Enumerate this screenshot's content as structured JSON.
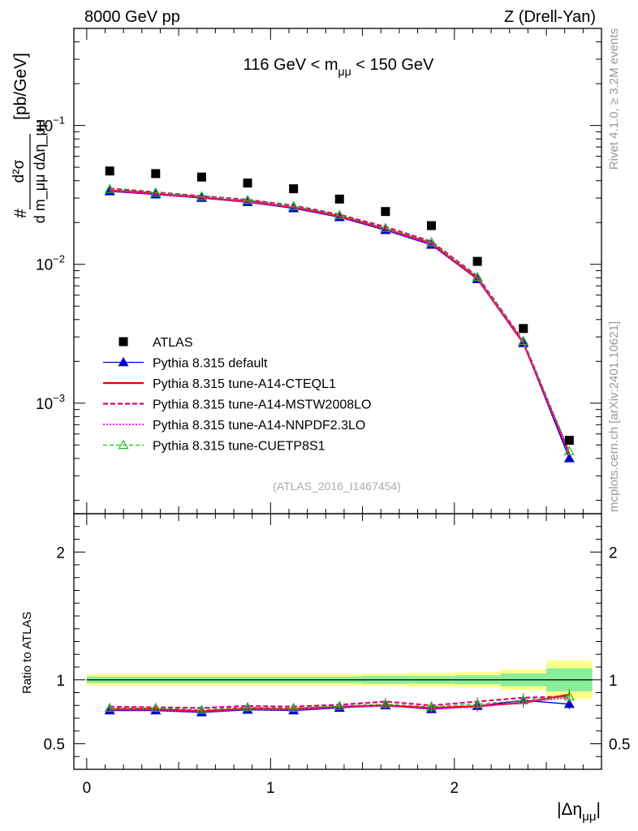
{
  "header": {
    "left": "8000 GeV pp",
    "right": "Z (Drell-Yan)"
  },
  "side_labels": {
    "rivet": "Rivet 4.1.0, ≥ 3.2M events",
    "mcplots": "mcplots.cern.ch [arXiv:2401.10621]"
  },
  "chart_data": [
    {
      "type": "scatter",
      "panel": "main",
      "title": "116 GeV < m_μμ < 150 GeV",
      "ylabel": "d²σ / (d m_μμ dΔη_μμ) [pb/GeV]",
      "ylabel_parts": {
        "hash": "#",
        "num": "d²σ",
        "den": "d m_μμ dΔη_μμ",
        "unit": "[pb/GeV]"
      },
      "yscale": "log",
      "ylim": [
        0.00016,
        0.5
      ],
      "xlim": [
        -0.07,
        2.8
      ],
      "ytick_labels": [
        {
          "v": 0.1,
          "base": "10",
          "exp": "−1"
        },
        {
          "v": 0.01,
          "base": "10",
          "exp": "−2"
        },
        {
          "v": 0.001,
          "base": "10",
          "exp": "−3"
        }
      ],
      "watermark": "(ATLAS_2016_I1467454)",
      "x": [
        0.125,
        0.375,
        0.625,
        0.875,
        1.125,
        1.375,
        1.625,
        1.875,
        2.125,
        2.375,
        2.625
      ],
      "series": [
        {
          "name": "ATLAS",
          "color": "#000000",
          "values": [
            0.047,
            0.045,
            0.0425,
            0.0385,
            0.035,
            0.0295,
            0.024,
            0.019,
            0.0105,
            0.00345,
            0.00054
          ]
        },
        {
          "name": "Pythia 8.315 default",
          "color": "#0000cc",
          "values": [
            0.0335,
            0.0318,
            0.03,
            0.028,
            0.0253,
            0.0218,
            0.0176,
            0.0138,
            0.0078,
            0.0027,
            0.0004
          ]
        },
        {
          "name": "Pythia 8.315 tune-A14-CTEQL1",
          "color": "#ee0000",
          "values": [
            0.034,
            0.0322,
            0.0302,
            0.0283,
            0.0257,
            0.0222,
            0.018,
            0.0141,
            0.0079,
            0.0027,
            0.00043
          ]
        },
        {
          "name": "Pythia 8.315 tune-A14-MSTW2008LO",
          "color": "#dd0077",
          "values": [
            0.0352,
            0.033,
            0.031,
            0.0292,
            0.0265,
            0.0228,
            0.0186,
            0.0146,
            0.0082,
            0.0028,
            0.00044
          ]
        },
        {
          "name": "Pythia 8.315 tune-A14-NNPDF2.3LO",
          "color": "#ee00ee",
          "values": [
            0.0338,
            0.032,
            0.0301,
            0.0282,
            0.0256,
            0.022,
            0.0178,
            0.014,
            0.0078,
            0.0027,
            0.00043
          ]
        },
        {
          "name": "Pythia 8.315 tune-CUETP8S1",
          "color": "#22bb22",
          "values": [
            0.0348,
            0.0328,
            0.0308,
            0.029,
            0.0262,
            0.0226,
            0.0182,
            0.0144,
            0.0081,
            0.0028,
            0.00045
          ]
        }
      ]
    },
    {
      "type": "line",
      "panel": "ratio",
      "ylabel": "Ratio to ATLAS",
      "xlabel": "|Δη_μμ|",
      "xlabel_parts": {
        "pre": "|Δη",
        "sub": "μμ",
        "post": "|"
      },
      "ylim": [
        0.3,
        2.3
      ],
      "xlim": [
        -0.07,
        2.8
      ],
      "xtick_labels": [
        "0",
        "1",
        "2"
      ],
      "ytick_labels": [
        "0.5",
        "1",
        "2"
      ],
      "bins": [
        0,
        0.25,
        0.5,
        0.75,
        1.0,
        1.25,
        1.5,
        1.75,
        2.0,
        2.25,
        2.5,
        2.75
      ],
      "band_inner": [
        0.025,
        0.025,
        0.025,
        0.025,
        0.025,
        0.025,
        0.03,
        0.03,
        0.035,
        0.05,
        0.09
      ],
      "band_outer": [
        0.045,
        0.045,
        0.045,
        0.045,
        0.045,
        0.045,
        0.05,
        0.055,
        0.06,
        0.08,
        0.15
      ],
      "x": [
        0.125,
        0.375,
        0.625,
        0.875,
        1.125,
        1.375,
        1.625,
        1.875,
        2.125,
        2.375,
        2.625
      ],
      "series": [
        {
          "name": "Pythia 8.315 default",
          "values": [
            0.76,
            0.76,
            0.745,
            0.765,
            0.76,
            0.78,
            0.8,
            0.77,
            0.795,
            0.84,
            0.81
          ]
        },
        {
          "name": "Pythia 8.315 tune-A14-CTEQL1",
          "values": [
            0.77,
            0.77,
            0.755,
            0.775,
            0.77,
            0.79,
            0.8,
            0.78,
            0.795,
            0.82,
            0.885
          ]
        },
        {
          "name": "Pythia 8.315 tune-A14-MSTW2008LO",
          "values": [
            0.79,
            0.785,
            0.78,
            0.795,
            0.79,
            0.805,
            0.83,
            0.8,
            0.83,
            0.86,
            0.87
          ]
        },
        {
          "name": "Pythia 8.315 tune-A14-NNPDF2.3LO",
          "values": [
            0.765,
            0.765,
            0.75,
            0.77,
            0.765,
            0.785,
            0.795,
            0.775,
            0.785,
            0.83,
            0.86
          ]
        },
        {
          "name": "Pythia 8.315 tune-CUETP8S1",
          "values": [
            0.78,
            0.78,
            0.765,
            0.785,
            0.78,
            0.795,
            0.81,
            0.79,
            0.81,
            0.84,
            0.87
          ]
        }
      ]
    }
  ]
}
